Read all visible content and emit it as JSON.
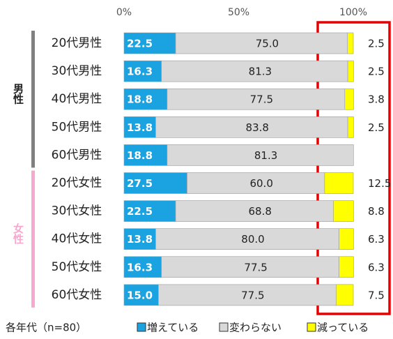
{
  "chart_data": {
    "type": "stacked_bar_horizontal",
    "categories": [
      "20代男性",
      "30代男性",
      "40代男性",
      "50代男性",
      "60代男性",
      "20代女性",
      "30代女性",
      "40代女性",
      "50代女性",
      "60代女性"
    ],
    "groups": [
      {
        "label": "男性",
        "color": "#808080"
      },
      {
        "label": "女性",
        "color": "#f7a8d0"
      }
    ],
    "series": [
      {
        "name": "増えている",
        "color": "#1aa3e0",
        "values": [
          22.5,
          16.3,
          18.8,
          13.8,
          18.8,
          27.5,
          22.5,
          13.8,
          16.3,
          15.0
        ],
        "value_labels": [
          "22.5",
          "16.3",
          "18.8",
          "13.8",
          "18.8",
          "27.5",
          "22.5",
          "13.8",
          "16.3",
          "15.0"
        ]
      },
      {
        "name": "変わらない",
        "color": "#d9d9d9",
        "values": [
          75.0,
          81.3,
          77.5,
          83.8,
          81.3,
          60.0,
          68.8,
          80.0,
          77.5,
          77.5
        ],
        "value_labels": [
          "75.0",
          "81.3",
          "77.5",
          "83.8",
          "81.3",
          "60.0",
          "68.8",
          "80.0",
          "77.5",
          "77.5"
        ]
      },
      {
        "name": "減っている",
        "color": "#ffff00",
        "values": [
          2.5,
          2.5,
          3.8,
          2.5,
          null,
          12.5,
          8.8,
          6.3,
          6.3,
          7.5
        ],
        "value_labels": [
          "2.5",
          "2.5",
          "3.8",
          "2.5",
          null,
          "12.5",
          "8.8",
          "6.3",
          "6.3",
          "7.5"
        ]
      }
    ],
    "xlim": [
      0,
      100
    ],
    "xticks": [
      {
        "value": 0,
        "label": "0%"
      },
      {
        "value": 50,
        "label": "50%"
      },
      {
        "value": 100,
        "label": "100%"
      }
    ],
    "note": "各年代（n=80）"
  }
}
